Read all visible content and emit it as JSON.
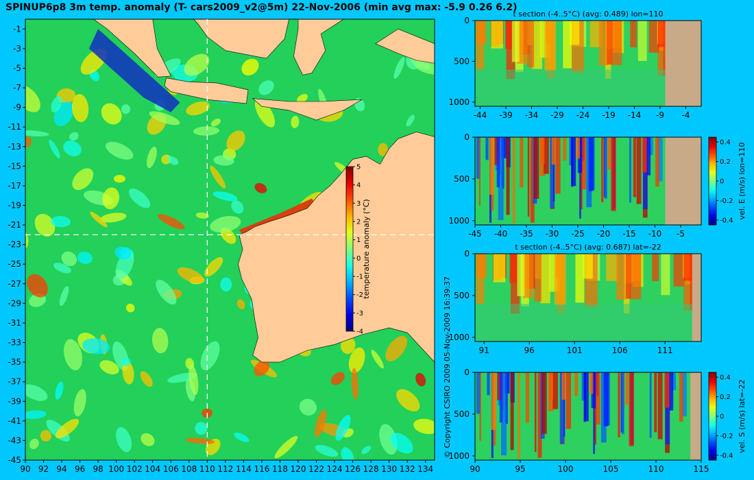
{
  "title": "SPINUP6p8 3m temp. anomaly (T- cars2009_v2@5m) 22-Nov-2006 (min avg max: -5.9 0.26 6.2)",
  "credit": "© Copyright CSIRO 2009   05-Nov-2009 16:39:37",
  "colors": {
    "background": "#00c8ff",
    "land": "#ffcc99",
    "sea": "#22d05a",
    "section_land": "#c8aa88",
    "crosshair": "#ffffff"
  },
  "chart_data": [
    {
      "type": "heatmap",
      "name": "map",
      "title": "SPINUP6p8 3m temp. anomaly (T- cars2009_v2@5m) 22-Nov-2006 (min avg max: -5.9 0.26 6.2)",
      "xlim": [
        90,
        135
      ],
      "ylim": [
        -45,
        0
      ],
      "x_ticks": [
        90,
        92,
        94,
        96,
        98,
        100,
        102,
        104,
        106,
        108,
        110,
        112,
        114,
        116,
        118,
        120,
        122,
        124,
        126,
        128,
        130,
        132,
        134
      ],
      "y_ticks": [
        -1,
        -3,
        -5,
        -7,
        -9,
        -11,
        -13,
        -15,
        -17,
        -19,
        -21,
        -23,
        -25,
        -27,
        -29,
        -31,
        -33,
        -35,
        -37,
        -39,
        -41,
        -43,
        -45
      ],
      "crosshair": {
        "lon": 110,
        "lat": -22
      },
      "colorbar": {
        "label": "temperature anomaly (°C)",
        "ticks": [
          5,
          4,
          3,
          2,
          1,
          0,
          -1,
          -2,
          -3,
          -4
        ],
        "range": [
          -4,
          5
        ]
      }
    },
    {
      "type": "heatmap",
      "name": "t-section-lon",
      "title": "t section (-4..5°C) (avg: 0.489) lon=110",
      "xlim": [
        -45,
        -1
      ],
      "ylim": [
        1050,
        0
      ],
      "x_ticks": [
        -44,
        -39,
        -34,
        -29,
        -24,
        -19,
        -14,
        -9,
        -4
      ],
      "y_ticks": [
        0,
        500,
        1000
      ],
      "land_from": -8
    },
    {
      "type": "heatmap",
      "name": "vel-e-section",
      "title": "",
      "xlim": [
        -45,
        -1
      ],
      "ylim": [
        1050,
        0
      ],
      "x_ticks": [
        -45,
        -40,
        -35,
        -30,
        -25,
        -20,
        -15,
        -10,
        -5
      ],
      "y_ticks": [
        0,
        500,
        1000
      ],
      "land_from": -8,
      "colorbar": {
        "label": "vel. E (m/s) lon=110",
        "ticks": [
          0.4,
          0.2,
          0,
          -0.2,
          -0.4
        ],
        "range": [
          -0.45,
          0.45
        ]
      }
    },
    {
      "type": "heatmap",
      "name": "t-section-lat",
      "title": "t section (-4..5°C) (avg: 0.687) lat=-22",
      "xlim": [
        90,
        115
      ],
      "ylim": [
        1050,
        0
      ],
      "x_ticks": [
        91,
        96,
        101,
        106,
        111
      ],
      "y_ticks": [
        0,
        500,
        1000
      ],
      "land_from": 114
    },
    {
      "type": "heatmap",
      "name": "vel-s-section",
      "title": "",
      "xlim": [
        90,
        115
      ],
      "ylim": [
        1050,
        0
      ],
      "x_ticks": [
        90,
        95,
        100,
        105,
        110,
        115
      ],
      "y_ticks": [
        0,
        500,
        1000
      ],
      "land_from": 113.8,
      "colorbar": {
        "label": "vel. S (m/s) lat=-22",
        "ticks": [
          0.4,
          0.2,
          0,
          -0.2,
          -0.4
        ],
        "range": [
          -0.45,
          0.45
        ]
      }
    }
  ]
}
